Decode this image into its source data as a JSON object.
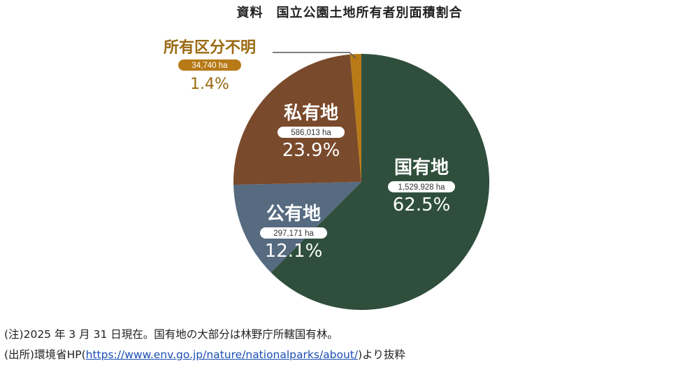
{
  "chart_data": {
    "type": "pie",
    "title": "資料　国立公園土地所有者別面積割合",
    "categories": [
      "国有地",
      "公有地",
      "私有地",
      "所有区分不明"
    ],
    "series": [
      {
        "values": [
          1529928,
          297171,
          586013,
          34740
        ],
        "units": [
          "1,529,928 ha",
          "297,171 ha",
          "586,013 ha",
          "34,740 ha"
        ],
        "percents": [
          "62.5%",
          "12.1%",
          "23.9%",
          "1.4%"
        ],
        "shares": [
          0.625,
          0.121,
          0.239,
          0.014
        ]
      }
    ],
    "colors": [
      "#2f4f3c",
      "#566a80",
      "#7a4a2c",
      "#b77a17"
    ],
    "label_colors": [
      "#ffffff",
      "#ffffff",
      "#ffffff",
      "#9a6a12"
    ],
    "start": "12 o'clock, clockwise"
  },
  "notes": {
    "note1": "(注)2025 年 3 月 31 日現在。国有地の大部分は林野庁所轄国有林。",
    "note2_prefix": "(出所)環境省HP(",
    "note2_link": "https://www.env.go.jp/nature/nationalparks/about/",
    "note2_suffix": ")より抜粋"
  }
}
